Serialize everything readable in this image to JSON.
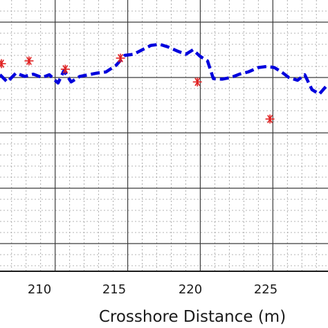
{
  "chart_data": {
    "type": "line",
    "title": "",
    "xlabel": "Crosshore Distance (m)",
    "ylabel": "",
    "xlim": [
      206.2,
      228.8
    ],
    "ylim": [
      -3.5,
      1.4
    ],
    "x_ticks": [
      210,
      215,
      220,
      225
    ],
    "x_tick_labels": [
      "210",
      "215",
      "220",
      "225"
    ],
    "y_gridlines": [
      -3,
      -2,
      -1,
      0,
      1
    ],
    "grid": "major and minor",
    "series": [
      {
        "style": "dashed line",
        "color": "#0000dd",
        "x": [
          206.2,
          206.7,
          207.3,
          207.9,
          208.5,
          209.1,
          209.6,
          210.2,
          210.6,
          211.1,
          211.7,
          212.3,
          212.9,
          213.5,
          214.2,
          214.8,
          215.4,
          216.0,
          216.6,
          217.2,
          217.8,
          218.4,
          219.0,
          219.5,
          220.0,
          220.5,
          220.9,
          221.5,
          222.1,
          222.7,
          223.3,
          224.0,
          224.6,
          225.1,
          225.6,
          226.1,
          226.7,
          227.2,
          227.7,
          228.2,
          228.8
        ],
        "y": [
          0.05,
          -0.08,
          0.08,
          0.02,
          0.06,
          0.0,
          0.05,
          -0.1,
          0.12,
          -0.08,
          0.02,
          0.05,
          0.08,
          0.1,
          0.22,
          0.4,
          0.42,
          0.5,
          0.58,
          0.6,
          0.55,
          0.48,
          0.42,
          0.5,
          0.38,
          0.3,
          -0.02,
          -0.03,
          0.0,
          0.06,
          0.1,
          0.18,
          0.2,
          0.18,
          0.1,
          0.0,
          -0.05,
          0.05,
          -0.22,
          -0.3,
          -0.12
        ]
      },
      {
        "style": "asterisk markers",
        "color": "#e02020",
        "x": [
          206.3,
          208.2,
          210.7,
          214.5,
          219.8,
          224.8
        ],
        "y": [
          0.25,
          0.3,
          0.15,
          0.35,
          -0.08,
          -0.75
        ]
      }
    ]
  },
  "axis": {
    "xlabel": "Crosshore Distance (m)",
    "tick_210": "210",
    "tick_215": "215",
    "tick_220": "220",
    "tick_225": "225"
  },
  "colors": {
    "line": "#0000dd",
    "markers": "#e02020",
    "major_grid": "#3a3a3a",
    "minor_grid": "#9a9a9a"
  }
}
